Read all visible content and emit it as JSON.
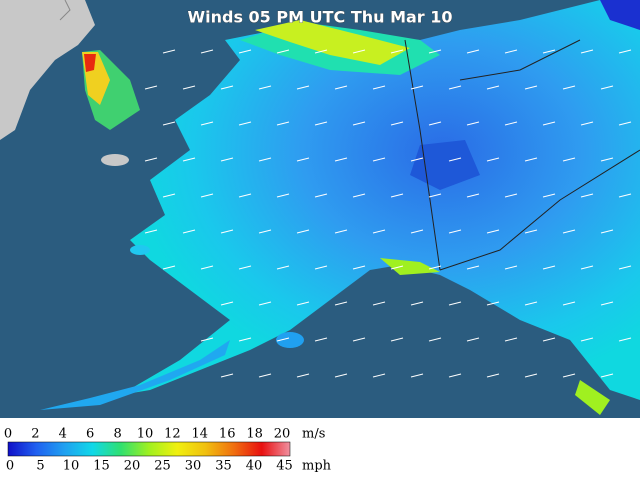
{
  "title": "Winds 05 PM UTC Thu Mar 10",
  "legend": {
    "ms_labels": [
      0,
      2,
      4,
      6,
      8,
      10,
      12,
      14,
      16,
      18,
      20
    ],
    "ms_unit": "m/s",
    "mph_labels": [
      0,
      5,
      10,
      15,
      20,
      25,
      30,
      35,
      40,
      45
    ],
    "mph_unit": "mph"
  }
}
